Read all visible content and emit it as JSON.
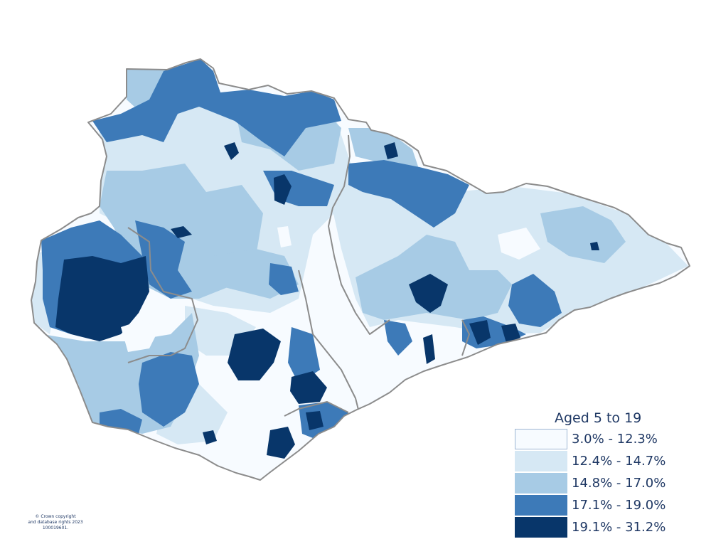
{
  "colors": {
    "background": "#ffffff",
    "boundary": "#8c8c8c",
    "class_1": "#f7fbff",
    "class_2": "#d6e8f4",
    "class_3": "#a7cbe5",
    "class_4": "#3d7ab8",
    "class_5": "#08366a",
    "text": "#1f3864"
  },
  "legend": {
    "title": "Aged 5 to 19",
    "items": [
      {
        "label": "3.0% - 12.3%",
        "color": "#f7fbff"
      },
      {
        "label": "12.4% - 14.7%",
        "color": "#d6e8f4"
      },
      {
        "label": "14.8% - 17.0%",
        "color": "#a7cbe5"
      },
      {
        "label": "17.1% - 19.0%",
        "color": "#3d7ab8"
      },
      {
        "label": "19.1% - 31.2%",
        "color": "#08366a"
      }
    ]
  },
  "copyright": {
    "line1": "© Crown copyright",
    "line2": "and database rights 2023",
    "line3": "100019601."
  }
}
